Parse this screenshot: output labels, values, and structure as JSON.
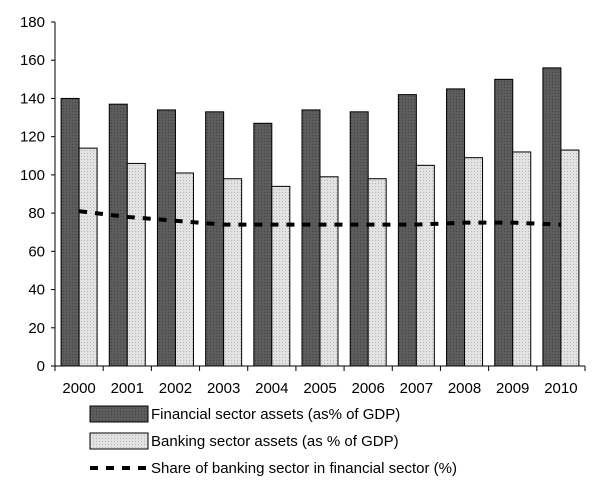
{
  "chart_data": {
    "type": "bar",
    "title": "",
    "xlabel": "",
    "ylabel": "",
    "ylim": [
      0,
      180
    ],
    "yticks": [
      0,
      20,
      40,
      60,
      80,
      100,
      120,
      140,
      160,
      180
    ],
    "grid": false,
    "legend_position": "bottom",
    "categories": [
      "2000",
      "2001",
      "2002",
      "2003",
      "2004",
      "2005",
      "2006",
      "2007",
      "2008",
      "2009",
      "2010"
    ],
    "series": [
      {
        "name": "Financial sector assets (as% of GDP)",
        "type": "bar",
        "color": "#5a5a5a",
        "values": [
          140,
          137,
          134,
          133,
          127,
          134,
          133,
          142,
          145,
          150,
          156
        ]
      },
      {
        "name": "Banking sector assets (as % of GDP)",
        "type": "bar",
        "color": "#dcdcdc",
        "values": [
          114,
          106,
          101,
          98,
          94,
          99,
          98,
          105,
          109,
          112,
          113
        ]
      },
      {
        "name": "Share of banking sector in financial sector (%)",
        "type": "line",
        "style": "dashed",
        "color": "#000000",
        "values": [
          81,
          78,
          76,
          74,
          74,
          74,
          74,
          74,
          75,
          75,
          74
        ]
      }
    ]
  }
}
